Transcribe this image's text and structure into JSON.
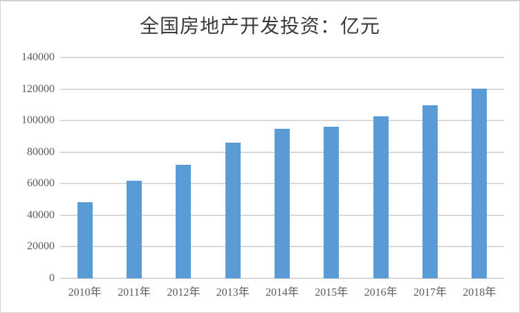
{
  "chart_data": {
    "type": "bar",
    "title": "全国房地产开发投资：亿元",
    "categories": [
      "2010年",
      "2011年",
      "2012年",
      "2013年",
      "2014年",
      "2015年",
      "2016年",
      "2017年",
      "2018年"
    ],
    "values": [
      48267,
      61797,
      71804,
      86013,
      95036,
      95979,
      102581,
      109799,
      120264
    ],
    "xlabel": "",
    "ylabel": "",
    "ylim": [
      0,
      140000
    ],
    "yticks": [
      0,
      20000,
      40000,
      60000,
      80000,
      100000,
      120000,
      140000
    ],
    "grid": true,
    "legend": false,
    "colors": {
      "bar": "#5B9BD5",
      "gridline": "#D9D9D9",
      "axis_line": "#D9D9D9",
      "tick_label": "#595959",
      "title": "#3B3B3B",
      "background": "#FFFFFF",
      "frame_border": "#D2D2D2"
    }
  }
}
